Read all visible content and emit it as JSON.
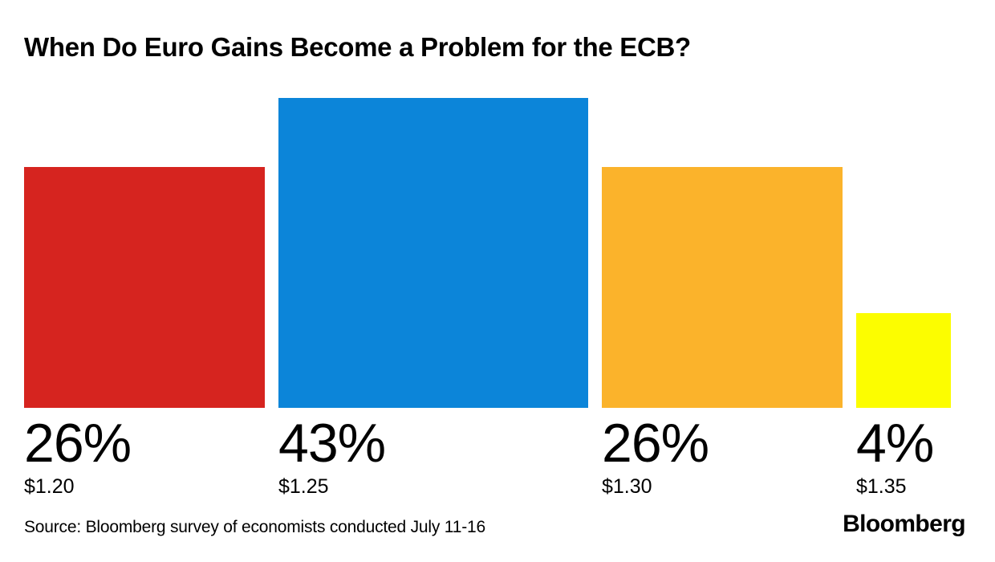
{
  "title": "When Do Euro Gains Become a Problem for the ECB?",
  "source_line": "Source: Bloomberg survey of economists conducted July 11-16",
  "logo_text": "Bloomberg",
  "chart_data": {
    "type": "bar",
    "variant": "area-proportional squares, bottom-aligned baseline",
    "title": "When Do Euro Gains Become a Problem for the ECB?",
    "categories": [
      "$1.20",
      "$1.25",
      "$1.30",
      "$1.35"
    ],
    "values": [
      26,
      43,
      26,
      4
    ],
    "value_labels": [
      "26%",
      "43%",
      "26%",
      "4%"
    ],
    "colors": [
      "#d6241f",
      "#0c85d9",
      "#fbb32b",
      "#fcfd00"
    ],
    "xlabel": "",
    "ylabel": "",
    "unit": "percent of surveyed economists",
    "legend": "none",
    "grid": false,
    "background": "#ffffff",
    "text_color": "#000000"
  }
}
